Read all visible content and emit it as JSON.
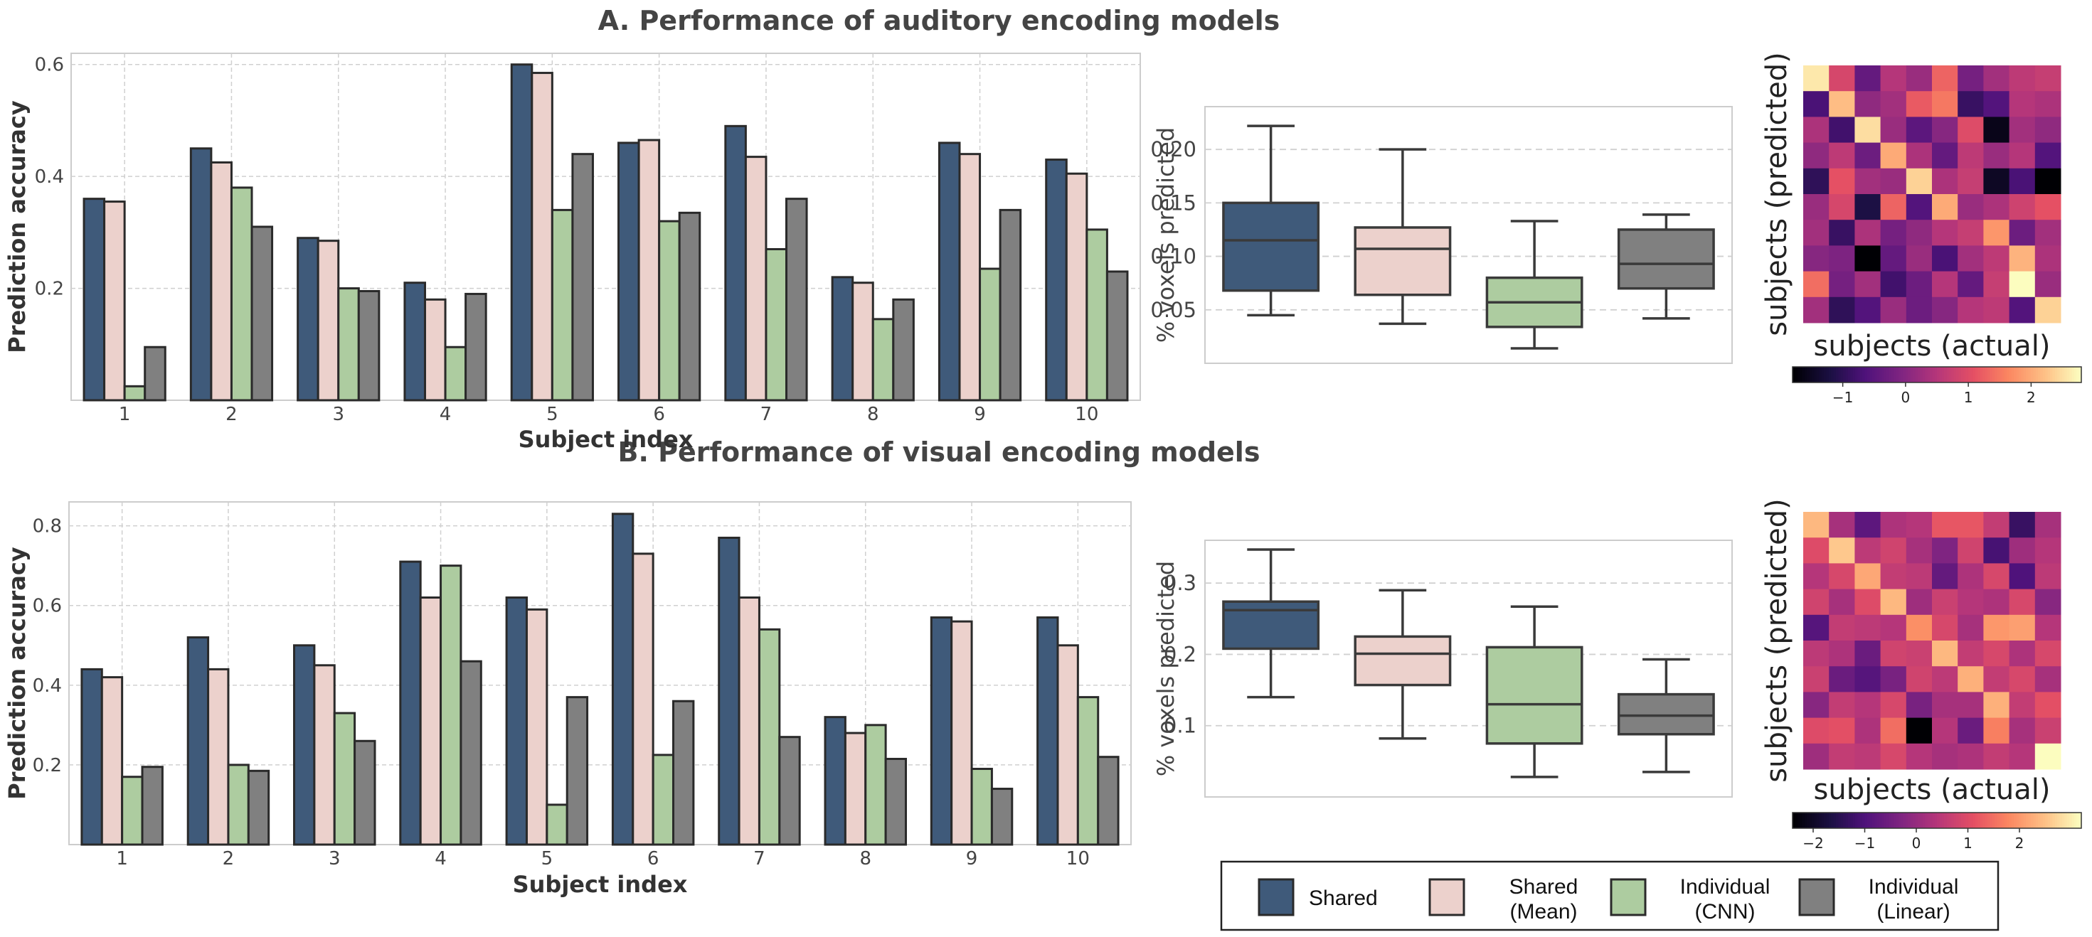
{
  "colors": {
    "shared": "#3f5a7a",
    "shared_mean": "#ecd1cc",
    "individual_cnn": "#adcca0",
    "individual_linear": "#808080",
    "edge": "#2a2a2a",
    "grid": "#d0d0d0"
  },
  "panelA": {
    "title": "A. Performance of auditory encoding models"
  },
  "panelB": {
    "title": "B. Performance of visual encoding models"
  },
  "legend": {
    "items": [
      {
        "key": "shared",
        "lines": [
          "Shared"
        ]
      },
      {
        "key": "shared_mean",
        "lines": [
          "Shared",
          "(Mean)"
        ]
      },
      {
        "key": "individual_cnn",
        "lines": [
          "Individual",
          "(CNN)"
        ]
      },
      {
        "key": "individual_linear",
        "lines": [
          "Individual",
          "(Linear)"
        ]
      }
    ]
  },
  "chart_data": [
    {
      "id": "A_bar",
      "type": "bar",
      "title": "A. Performance of auditory encoding models",
      "xlabel": "Subject index",
      "ylabel": "Prediction accuracy",
      "categories": [
        "1",
        "2",
        "3",
        "4",
        "5",
        "6",
        "7",
        "8",
        "9",
        "10"
      ],
      "ylim": [
        0,
        0.62
      ],
      "yticks": [
        0.2,
        0.4,
        0.6
      ],
      "ytick_labels": [
        "0.2",
        "0.4",
        "0.6"
      ],
      "grid": true,
      "series": [
        {
          "name": "Shared",
          "key": "shared",
          "values": [
            0.36,
            0.45,
            0.29,
            0.21,
            0.6,
            0.46,
            0.49,
            0.22,
            0.46,
            0.43
          ]
        },
        {
          "name": "Shared (Mean)",
          "key": "shared_mean",
          "values": [
            0.355,
            0.425,
            0.285,
            0.18,
            0.585,
            0.465,
            0.435,
            0.21,
            0.44,
            0.405
          ]
        },
        {
          "name": "Individual (CNN)",
          "key": "individual_cnn",
          "values": [
            0.025,
            0.38,
            0.2,
            0.095,
            0.34,
            0.32,
            0.27,
            0.145,
            0.235,
            0.305
          ]
        },
        {
          "name": "Individual (Linear)",
          "key": "individual_linear",
          "values": [
            0.095,
            0.31,
            0.195,
            0.19,
            0.44,
            0.335,
            0.36,
            0.18,
            0.34,
            0.23
          ]
        }
      ]
    },
    {
      "id": "A_box",
      "type": "box",
      "ylabel": "% voxels predicted",
      "ylim": [
        0.0,
        0.24
      ],
      "yticks": [
        0.05,
        0.1,
        0.15,
        0.2
      ],
      "ytick_labels": [
        "0.05",
        "0.10",
        "0.15",
        "0.20"
      ],
      "grid": true,
      "boxes": [
        {
          "name": "Shared",
          "key": "shared",
          "whislo": 0.045,
          "q1": 0.068,
          "med": 0.115,
          "q3": 0.15,
          "whishi": 0.222
        },
        {
          "name": "Shared (Mean)",
          "key": "shared_mean",
          "whislo": 0.037,
          "q1": 0.064,
          "med": 0.107,
          "q3": 0.127,
          "whishi": 0.2
        },
        {
          "name": "Individual (CNN)",
          "key": "individual_cnn",
          "whislo": 0.014,
          "q1": 0.034,
          "med": 0.057,
          "q3": 0.08,
          "whishi": 0.133
        },
        {
          "name": "Individual (Linear)",
          "key": "individual_linear",
          "whislo": 0.042,
          "q1": 0.07,
          "med": 0.093,
          "q3": 0.125,
          "whishi": 0.139
        }
      ]
    },
    {
      "id": "A_heat",
      "type": "heatmap",
      "xlabel": "subjects (actual)",
      "ylabel": "subjects (predicted)",
      "colorbar_range": [
        -1.8,
        2.8
      ],
      "colorbar_ticks": [
        -1,
        0,
        1,
        2
      ],
      "colorbar_labels": [
        "−1",
        "0",
        "1",
        "2"
      ],
      "matrix": [
        [
          2.6,
          0.9,
          -0.4,
          0.5,
          0.2,
          1.3,
          -0.2,
          0.3,
          0.6,
          0.7
        ],
        [
          -0.7,
          2.2,
          0.1,
          0.3,
          1.2,
          1.5,
          -0.9,
          -0.6,
          0.5,
          0.4
        ],
        [
          0.4,
          -0.8,
          2.5,
          0.2,
          -0.5,
          0.0,
          1.0,
          -1.6,
          0.3,
          0.1
        ],
        [
          0.1,
          0.6,
          -0.3,
          2.0,
          0.4,
          -0.4,
          0.6,
          0.2,
          0.5,
          -0.6
        ],
        [
          -1.0,
          1.1,
          0.3,
          0.2,
          2.4,
          0.4,
          0.7,
          -1.5,
          -0.7,
          -1.8
        ],
        [
          0.2,
          0.9,
          -1.2,
          1.3,
          -0.6,
          2.0,
          0.2,
          0.4,
          0.8,
          1.1
        ],
        [
          0.3,
          -0.9,
          0.4,
          -0.2,
          0.1,
          0.5,
          0.7,
          1.8,
          -0.3,
          0.3
        ],
        [
          0.0,
          -0.1,
          -1.8,
          -0.4,
          0.2,
          -0.7,
          0.3,
          0.6,
          2.1,
          0.4
        ],
        [
          1.4,
          -0.2,
          0.3,
          -0.8,
          -0.3,
          0.5,
          -0.4,
          0.7,
          2.8,
          0.2
        ],
        [
          0.3,
          -1.0,
          -0.6,
          0.2,
          -0.3,
          0.0,
          0.5,
          0.6,
          -0.6,
          2.4
        ]
      ]
    },
    {
      "id": "B_bar",
      "type": "bar",
      "title": "B. Performance of visual encoding models",
      "xlabel": "Subject index",
      "ylabel": "Prediction accuracy",
      "categories": [
        "1",
        "2",
        "3",
        "4",
        "5",
        "6",
        "7",
        "8",
        "9",
        "10"
      ],
      "ylim": [
        0,
        0.86
      ],
      "yticks": [
        0.2,
        0.4,
        0.6,
        0.8
      ],
      "ytick_labels": [
        "0.2",
        "0.4",
        "0.6",
        "0.8"
      ],
      "grid": true,
      "series": [
        {
          "name": "Shared",
          "key": "shared",
          "values": [
            0.44,
            0.52,
            0.5,
            0.71,
            0.62,
            0.83,
            0.77,
            0.32,
            0.57,
            0.57
          ]
        },
        {
          "name": "Shared (Mean)",
          "key": "shared_mean",
          "values": [
            0.42,
            0.44,
            0.45,
            0.62,
            0.59,
            0.73,
            0.62,
            0.28,
            0.56,
            0.5
          ]
        },
        {
          "name": "Individual (CNN)",
          "key": "individual_cnn",
          "values": [
            0.17,
            0.2,
            0.33,
            0.7,
            0.1,
            0.225,
            0.54,
            0.3,
            0.19,
            0.37
          ]
        },
        {
          "name": "Individual (Linear)",
          "key": "individual_linear",
          "values": [
            0.195,
            0.185,
            0.26,
            0.46,
            0.37,
            0.36,
            0.27,
            0.215,
            0.14,
            0.22
          ]
        }
      ]
    },
    {
      "id": "B_box",
      "type": "box",
      "ylabel": "% voxels predicted",
      "ylim": [
        0.0,
        0.36
      ],
      "yticks": [
        0.1,
        0.2,
        0.3
      ],
      "ytick_labels": [
        "0.1",
        "0.2",
        "0.3"
      ],
      "grid": true,
      "boxes": [
        {
          "name": "Shared",
          "key": "shared",
          "whislo": 0.14,
          "q1": 0.208,
          "med": 0.262,
          "q3": 0.274,
          "whishi": 0.347
        },
        {
          "name": "Shared (Mean)",
          "key": "shared_mean",
          "whislo": 0.082,
          "q1": 0.157,
          "med": 0.201,
          "q3": 0.225,
          "whishi": 0.29
        },
        {
          "name": "Individual (CNN)",
          "key": "individual_cnn",
          "whislo": 0.028,
          "q1": 0.075,
          "med": 0.13,
          "q3": 0.21,
          "whishi": 0.267
        },
        {
          "name": "Individual (Linear)",
          "key": "individual_linear",
          "whislo": 0.035,
          "q1": 0.088,
          "med": 0.114,
          "q3": 0.144,
          "whishi": 0.193
        }
      ]
    },
    {
      "id": "B_heat",
      "type": "heatmap",
      "xlabel": "subjects (actual)",
      "ylabel": "subjects (predicted)",
      "colorbar_range": [
        -2.4,
        3.2
      ],
      "colorbar_ticks": [
        -2,
        -1,
        0,
        1,
        2
      ],
      "colorbar_labels": [
        "−2",
        "−1",
        "0",
        "1",
        "2"
      ],
      "matrix": [
        [
          2.4,
          0.2,
          -0.8,
          0.3,
          0.4,
          1.2,
          1.2,
          0.6,
          -1.3,
          0.2
        ],
        [
          1.0,
          2.6,
          0.5,
          0.8,
          0.2,
          -0.3,
          0.8,
          -1.1,
          0.1,
          0.4
        ],
        [
          0.4,
          0.9,
          2.2,
          0.6,
          0.5,
          -0.7,
          0.3,
          0.9,
          -1.0,
          0.5
        ],
        [
          0.8,
          0.2,
          1.0,
          2.4,
          0.1,
          0.7,
          0.4,
          0.3,
          0.9,
          -0.2
        ],
        [
          -0.9,
          0.6,
          0.5,
          0.4,
          1.9,
          0.9,
          0.2,
          2.0,
          2.1,
          0.4
        ],
        [
          0.5,
          0.3,
          -0.6,
          0.8,
          0.7,
          2.4,
          0.6,
          0.9,
          0.3,
          0.9
        ],
        [
          0.7,
          -0.6,
          -0.9,
          -0.4,
          0.8,
          0.5,
          2.3,
          0.6,
          0.9,
          0.2
        ],
        [
          -0.2,
          0.6,
          0.4,
          0.9,
          -0.4,
          0.2,
          0.2,
          2.3,
          0.6,
          1.1
        ],
        [
          1.0,
          1.1,
          0.3,
          1.5,
          -2.4,
          0.4,
          -0.6,
          1.7,
          0.2,
          0.7
        ],
        [
          0.1,
          0.6,
          0.5,
          0.9,
          0.4,
          0.2,
          0.3,
          0.6,
          0.4,
          3.2
        ]
      ]
    }
  ]
}
